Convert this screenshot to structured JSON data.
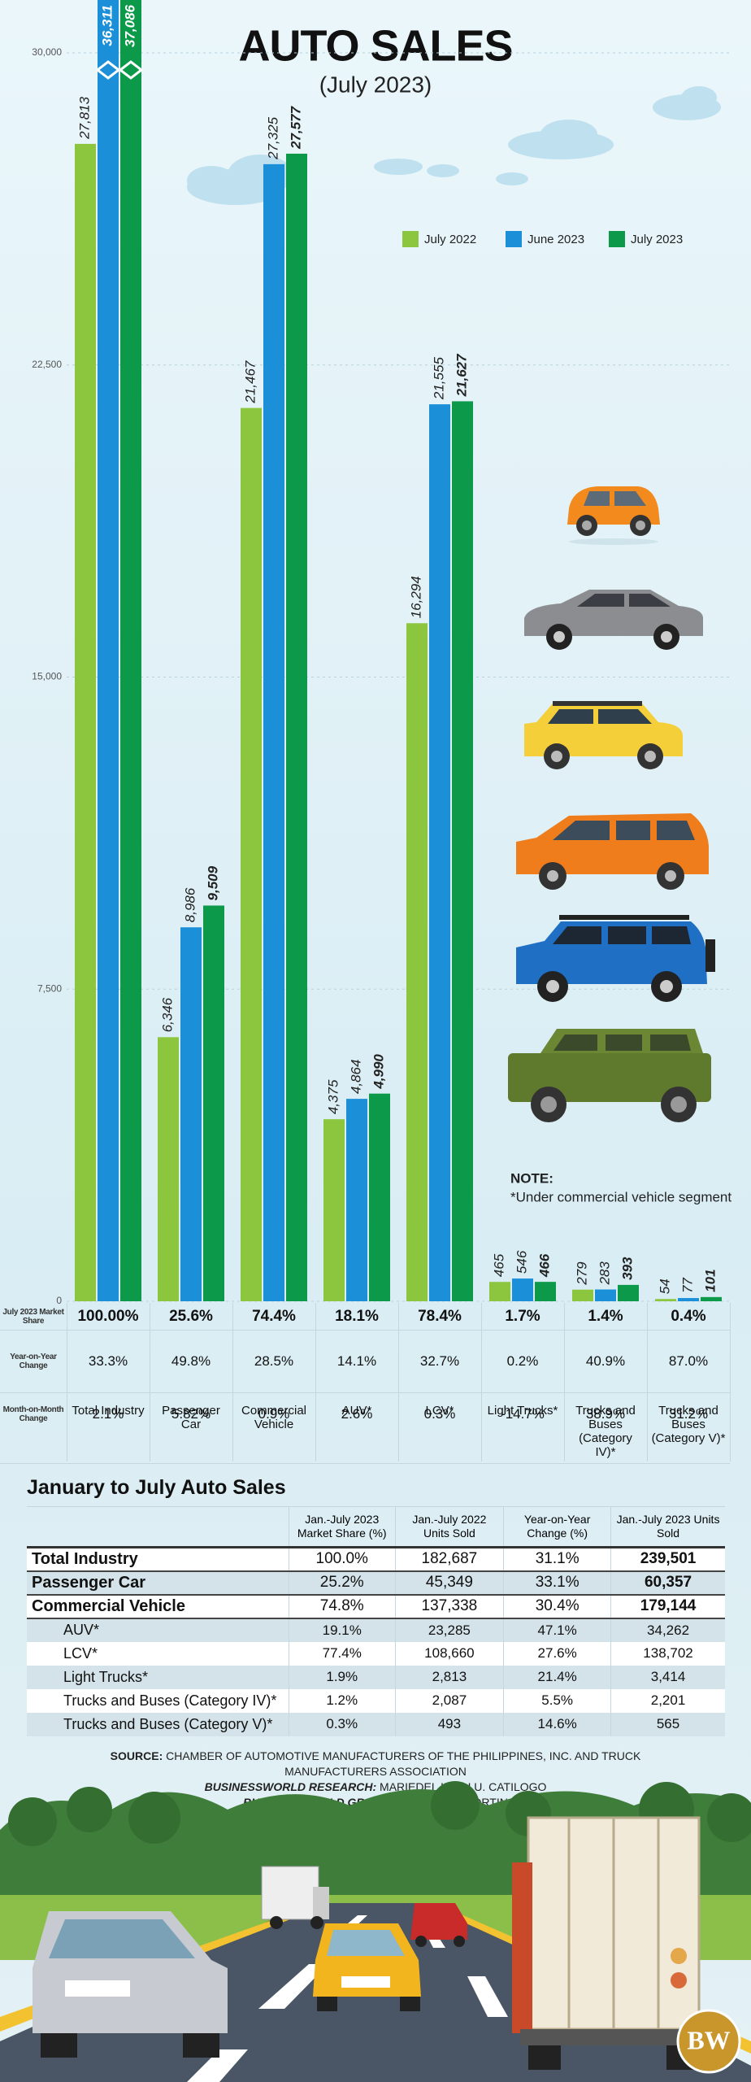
{
  "chart_data": {
    "type": "bar",
    "title": "AUTO SALES",
    "subtitle": "(July 2023)",
    "categories": [
      "Total Industry",
      "Passenger Car",
      "Commercial Vehicle",
      "AUV*",
      "LCV*",
      "Light Trucks*",
      "Trucks and Buses (Category IV)*",
      "Trucks and Buses (Category V)*"
    ],
    "series": [
      {
        "name": "July 2022",
        "color": "#8cc63f",
        "values": [
          27813,
          6346,
          21467,
          4375,
          16294,
          465,
          279,
          54
        ],
        "value_labels": [
          "27,813",
          "6,346",
          "21,467",
          "4,375",
          "16,294",
          "465",
          "279",
          "54"
        ]
      },
      {
        "name": "June 2023",
        "color": "#1b8fd8",
        "values": [
          36311,
          8986,
          27325,
          4864,
          21555,
          546,
          283,
          77
        ],
        "value_labels": [
          "36,311",
          "8,986",
          "27,325",
          "4,864",
          "21,555",
          "546",
          "283",
          "77"
        ]
      },
      {
        "name": "July 2023",
        "color": "#0c9a4a",
        "values": [
          37086,
          9509,
          27577,
          4990,
          21627,
          466,
          393,
          101
        ],
        "value_labels": [
          "37,086",
          "9,509",
          "27,577",
          "4,990",
          "21,627",
          "466",
          "393",
          "101"
        ]
      }
    ],
    "ylim": [
      0,
      30000
    ],
    "yticks": [
      0,
      {
        "value": 7500,
        "label": "7,500"
      },
      {
        "value": 15000,
        "label": "15,000"
      },
      {
        "value": 22500,
        "label": "22,500"
      },
      {
        "value": 30000,
        "label": "30,000"
      }
    ],
    "grid": true,
    "legend": "upper right",
    "note": {
      "label": "NOTE:",
      "text": "*Under commercial vehicle segment"
    },
    "summary_rows": [
      {
        "label": "July 2023 Market Share",
        "values": [
          "100.00%",
          "25.6%",
          "74.4%",
          "18.1%",
          "78.4%",
          "1.7%",
          "1.4%",
          "0.4%"
        ]
      },
      {
        "label": "Year-on-Year Change",
        "values": [
          "33.3%",
          "49.8%",
          "28.5%",
          "14.1%",
          "32.7%",
          "0.2%",
          "40.9%",
          "87.0%"
        ]
      },
      {
        "label": "Month-on-Month Change",
        "values": [
          "2.1%",
          "5.82%",
          "0.9%",
          "2.6%",
          "0.3%",
          "-14.7%",
          "38.9%",
          "31.2%"
        ]
      }
    ]
  },
  "table": {
    "title": "January to July Auto Sales",
    "header": [
      "Jan.-July 2023 Market Share (%)",
      "Jan.-July 2022 Units Sold",
      "Year-on-Year Change (%)",
      "Jan.-July 2023 Units Sold"
    ],
    "rows": [
      {
        "name": "Total Industry",
        "cells": [
          "100.0%",
          "182,687",
          "31.1%",
          "239,501"
        ]
      },
      {
        "name": "Passenger Car",
        "cells": [
          "25.2%",
          "45,349",
          "33.1%",
          "60,357"
        ]
      },
      {
        "name": "Commercial Vehicle",
        "cells": [
          "74.8%",
          "137,338",
          "30.4%",
          "179,144"
        ]
      },
      {
        "name": "AUV*",
        "cells": [
          "19.1%",
          "23,285",
          "47.1%",
          "34,262"
        ]
      },
      {
        "name": "LCV*",
        "cells": [
          "77.4%",
          "108,660",
          "27.6%",
          "138,702"
        ]
      },
      {
        "name": "Light Trucks*",
        "cells": [
          "1.9%",
          "2,813",
          "21.4%",
          "3,414"
        ]
      },
      {
        "name": "Trucks and Buses (Category IV)*",
        "cells": [
          "1.2%",
          "2,087",
          "5.5%",
          "2,201"
        ]
      },
      {
        "name": "Trucks and Buses (Category V)*",
        "cells": [
          "0.3%",
          "493",
          "14.6%",
          "565"
        ]
      }
    ]
  },
  "credits": [
    {
      "label": "SOURCE:",
      "text": "CHAMBER OF AUTOMOTIVE MANUFACTURERS OF THE PHILIPPINES, INC. AND TRUCK MANUFACTURERS ASSOCIATION"
    },
    {
      "label": "BUSINESSWORLD RESEARCH:",
      "text": "MARIEDEL IRISH U. CATILOGO"
    },
    {
      "label": "BUSINESSWORLD GRAPHICS:",
      "text": "BONG R. FORTIN"
    }
  ],
  "logo": "BW"
}
